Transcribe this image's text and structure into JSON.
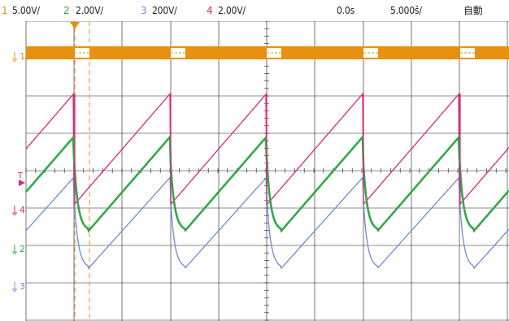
{
  "colors": {
    "ch1": "#e8900f",
    "ch2": "#33a84a",
    "ch3": "#6f88dc",
    "ch4": "#d9277f",
    "grid": "#1a1a1a",
    "cursor": "#f0a040"
  },
  "header": {
    "ch1_num": "1",
    "ch1_scale": "5.00V/",
    "ch2_num": "2",
    "ch2_scale": "2.00V/",
    "ch3_num": "3",
    "ch3_scale": "200V/",
    "ch4_num": "4",
    "ch4_scale": "2.00V/",
    "time_offset": "0.0s",
    "time_scale": "5.000š/",
    "mode": "自動"
  },
  "markers": {
    "trigger_label": "T",
    "ch1_label": "1",
    "ch4_label": "4",
    "ch2_label": "2",
    "ch3_label": "3"
  },
  "icons": {
    "trigger_cursor": "trigger-position-icon",
    "ground": "ground-icon",
    "trigger_level": "trigger-level-icon"
  }
}
